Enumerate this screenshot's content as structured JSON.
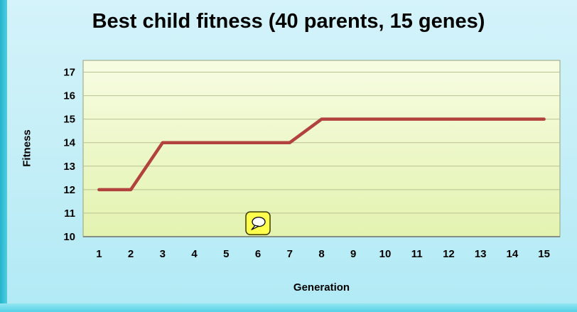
{
  "window": {
    "background": "#c3eef7",
    "left_bar_color": "#23b3cc",
    "bottom_bar_color": "#55d2e7"
  },
  "chart_data": {
    "type": "line",
    "title": "Best child fitness (40 parents, 15 genes)",
    "xlabel": "Generation",
    "ylabel": "Fitness",
    "categories": [
      1,
      2,
      3,
      4,
      5,
      6,
      7,
      8,
      9,
      10,
      11,
      12,
      13,
      14,
      15
    ],
    "series": [
      {
        "name": "Best child fitness",
        "values": [
          12,
          12,
          14,
          14,
          14,
          14,
          14,
          15,
          15,
          15,
          15,
          15,
          15,
          15,
          15
        ],
        "color": "#b2423d",
        "stroke_width": 4.5
      }
    ],
    "ylim": [
      10,
      17.5
    ],
    "yticks": [
      10,
      11,
      12,
      13,
      14,
      15,
      16,
      17
    ],
    "grid": "horizontal",
    "legend_position": "none",
    "plot_bg_top": "#f7fce2",
    "plot_bg_bottom": "#e3f3b0",
    "grid_color": "#b9c193",
    "plot_border_color": "#98a07a",
    "axis_color": "#6e6e6e",
    "annotation": {
      "kind": "comment-bubble",
      "x": 6,
      "y": 10.57,
      "fill": "#ffff4d",
      "border": "#3c3c00"
    }
  }
}
